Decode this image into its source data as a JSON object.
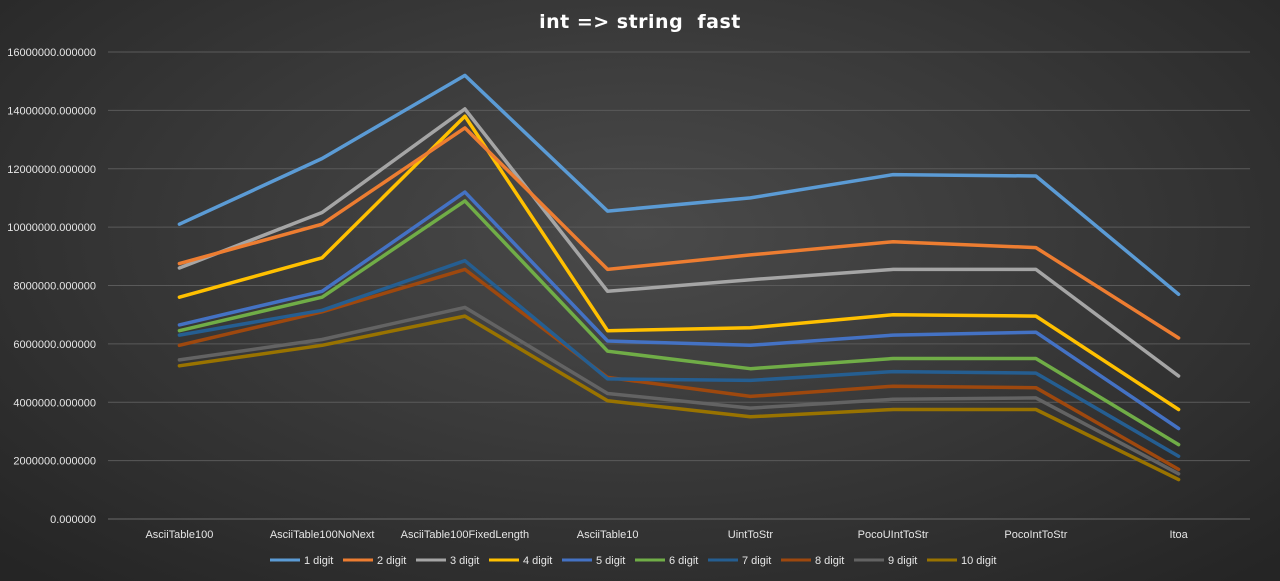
{
  "chart_data": {
    "type": "line",
    "title": "int => string  fast",
    "categories": [
      "AsciiTable100",
      "AsciiTable100NoNext",
      "AsciiTable100FixedLength",
      "AsciiTable10",
      "UintToStr",
      "PocoUIntToStr",
      "PocoIntToStr",
      "Itoa"
    ],
    "y_ticks": [
      "0.000000",
      "2000000.000000",
      "4000000.000000",
      "6000000.000000",
      "8000000.000000",
      "10000000.000000",
      "12000000.000000",
      "14000000.000000",
      "16000000.000000"
    ],
    "ylim": [
      0,
      16000000
    ],
    "grid": true,
    "legend_position": "bottom",
    "xlabel": "",
    "ylabel": "",
    "series": [
      {
        "name": "1 digit",
        "color": "#5b9bd5",
        "values": [
          10100000,
          12350000,
          15200000,
          10550000,
          11000000,
          11800000,
          11750000,
          7700000
        ]
      },
      {
        "name": "2 digit",
        "color": "#ed7d31",
        "values": [
          8750000,
          10100000,
          13400000,
          8550000,
          9050000,
          9500000,
          9300000,
          6200000
        ]
      },
      {
        "name": "3 digit",
        "color": "#a5a5a5",
        "values": [
          8600000,
          10500000,
          14050000,
          7800000,
          8200000,
          8550000,
          8550000,
          4900000
        ]
      },
      {
        "name": "4 digit",
        "color": "#ffc000",
        "values": [
          7600000,
          8950000,
          13800000,
          6450000,
          6550000,
          7000000,
          6950000,
          3750000
        ]
      },
      {
        "name": "5 digit",
        "color": "#4472c4",
        "values": [
          6650000,
          7800000,
          11200000,
          6100000,
          5950000,
          6300000,
          6400000,
          3100000
        ]
      },
      {
        "name": "6 digit",
        "color": "#70ad47",
        "values": [
          6450000,
          7600000,
          10900000,
          5750000,
          5150000,
          5500000,
          5500000,
          2550000
        ]
      },
      {
        "name": "7 digit",
        "color": "#255e91",
        "values": [
          6300000,
          7150000,
          8850000,
          4800000,
          4750000,
          5050000,
          5000000,
          2150000
        ]
      },
      {
        "name": "8 digit",
        "color": "#9e480e",
        "values": [
          5950000,
          7100000,
          8550000,
          4850000,
          4200000,
          4550000,
          4500000,
          1700000
        ]
      },
      {
        "name": "9 digit",
        "color": "#636363",
        "values": [
          5450000,
          6150000,
          7250000,
          4300000,
          3800000,
          4100000,
          4150000,
          1550000
        ]
      },
      {
        "name": "10 digit",
        "color": "#997300",
        "values": [
          5250000,
          5950000,
          6950000,
          4050000,
          3500000,
          3750000,
          3750000,
          1350000
        ]
      }
    ]
  }
}
